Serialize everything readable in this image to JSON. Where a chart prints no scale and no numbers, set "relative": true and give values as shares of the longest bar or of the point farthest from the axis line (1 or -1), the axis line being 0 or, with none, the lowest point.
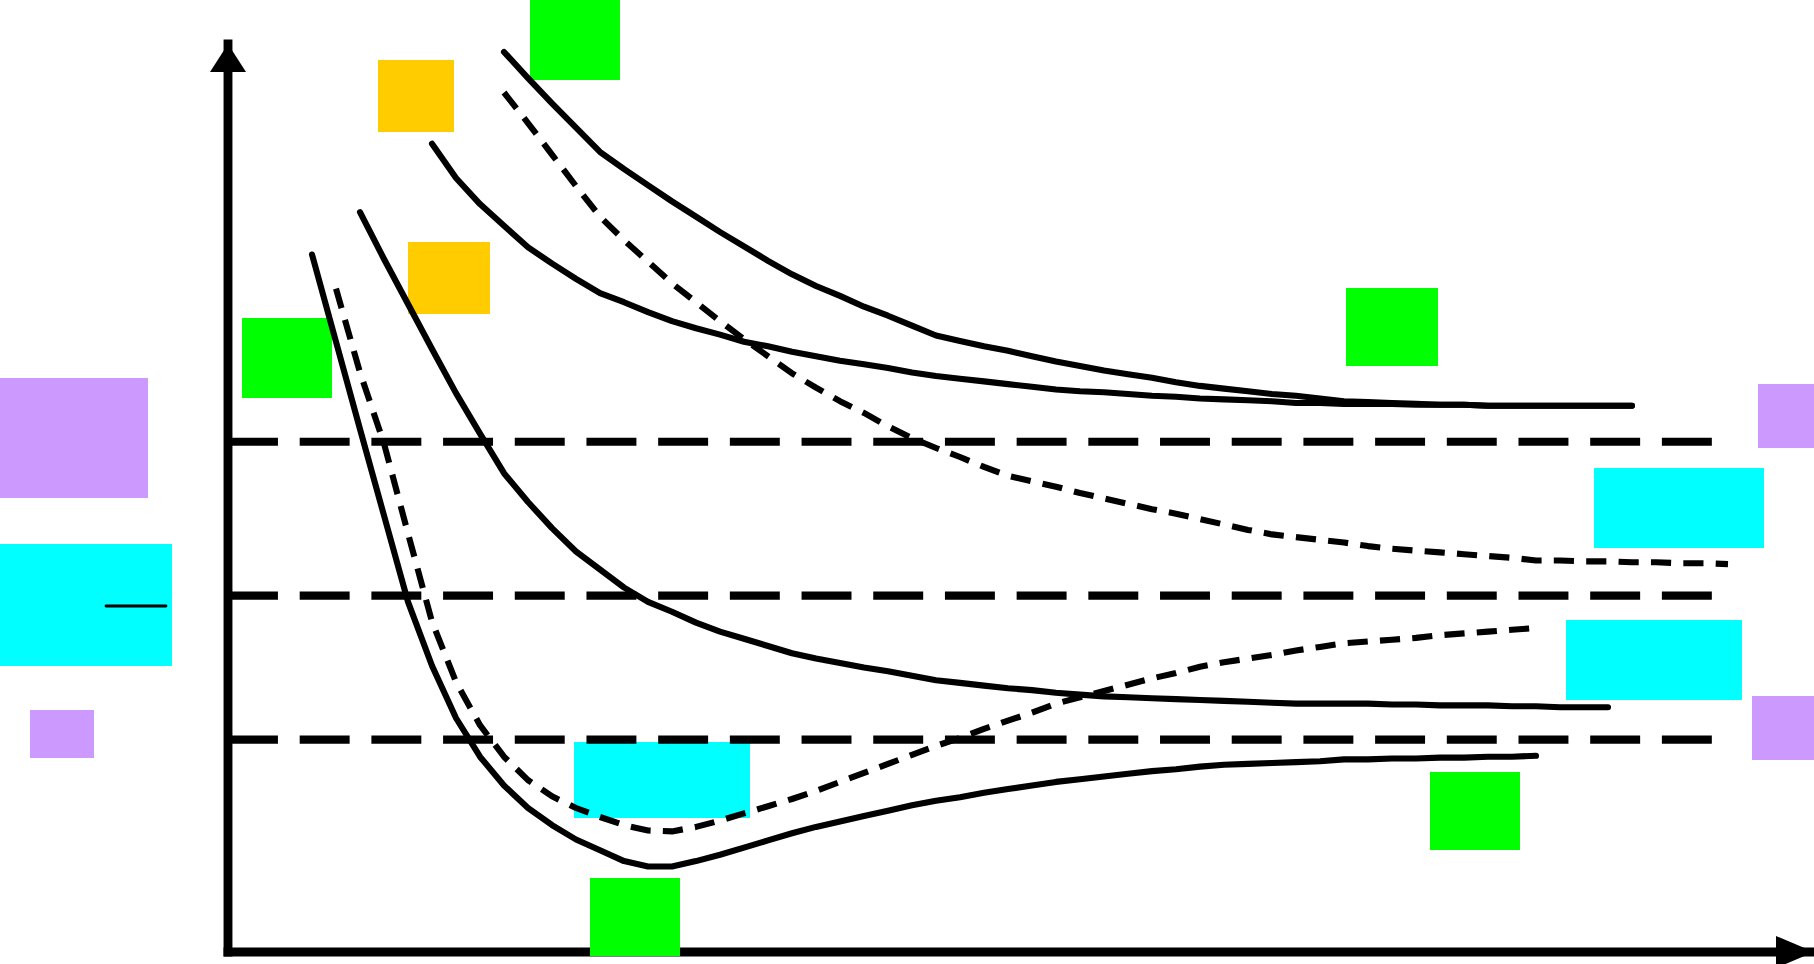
{
  "chart_data": {
    "type": "line",
    "relative": true,
    "categories": [
      null,
      null,
      null,
      null,
      null,
      null,
      null,
      null,
      null,
      null,
      null,
      null,
      null,
      null,
      null,
      null,
      null,
      null,
      null,
      null,
      null,
      null,
      null,
      null,
      null,
      null,
      null,
      null,
      null,
      null,
      null,
      null,
      null,
      null,
      null,
      null,
      null,
      null,
      null,
      null,
      null,
      null,
      null,
      null,
      null,
      null,
      null,
      null,
      null,
      null,
      null,
      null,
      null,
      null,
      null,
      null,
      null,
      null,
      null,
      null,
      null,
      null,
      null,
      null,
      null,
      null
    ],
    "series": [
      {
        "color": "#000000",
        "line_style": "solid",
        "values": [
          null,
          null,
          null,
          null,
          null,
          null,
          null,
          null,
          null,
          null,
          null,
          1.0,
          0.971,
          0.943,
          0.916,
          0.889,
          0.87,
          0.852,
          0.834,
          0.817,
          0.8,
          0.784,
          0.768,
          0.753,
          0.74,
          0.729,
          0.717,
          0.707,
          0.696,
          0.685,
          0.679,
          0.673,
          0.668,
          0.662,
          0.656,
          0.651,
          0.646,
          0.642,
          0.638,
          0.633,
          0.629,
          0.626,
          0.623,
          0.62,
          0.618,
          0.615,
          0.612,
          0.611,
          0.61,
          0.609,
          0.608,
          0.608,
          0.607,
          0.607,
          0.607,
          0.607,
          0.607,
          0.607,
          0.607,
          null,
          null,
          null,
          null,
          null,
          null,
          null
        ]
      },
      {
        "color": "#000000",
        "line_style": "solid",
        "values": [
          null,
          null,
          null,
          null,
          null,
          null,
          null,
          null,
          0.898,
          0.86,
          0.831,
          0.807,
          0.783,
          0.765,
          0.748,
          0.732,
          0.722,
          0.711,
          0.701,
          0.693,
          0.686,
          0.678,
          0.673,
          0.667,
          0.662,
          0.657,
          0.653,
          0.649,
          0.644,
          0.64,
          0.637,
          0.634,
          0.631,
          0.628,
          0.625,
          0.623,
          0.622,
          0.62,
          0.618,
          0.617,
          0.615,
          0.614,
          0.613,
          0.612,
          0.61,
          0.61,
          0.609,
          0.609,
          0.609,
          0.608,
          0.608,
          0.608,
          0.607,
          0.607,
          0.607,
          0.607,
          0.607,
          0.607,
          0.607,
          null,
          null,
          null,
          null,
          null,
          null,
          null
        ]
      },
      {
        "color": "#000000",
        "line_style": "dashed",
        "values": [
          null,
          null,
          null,
          null,
          null,
          null,
          null,
          null,
          null,
          null,
          null,
          0.955,
          0.921,
          0.886,
          0.851,
          0.817,
          0.791,
          0.767,
          0.743,
          0.722,
          0.701,
          0.681,
          0.662,
          0.643,
          0.627,
          0.612,
          0.599,
          0.584,
          0.571,
          0.56,
          0.55,
          0.539,
          0.529,
          0.523,
          0.517,
          0.51,
          0.504,
          0.498,
          0.492,
          0.487,
          0.481,
          0.475,
          0.469,
          0.464,
          0.461,
          0.458,
          0.455,
          0.451,
          0.448,
          0.446,
          0.444,
          0.442,
          0.44,
          0.438,
          0.435,
          0.435,
          0.434,
          0.434,
          0.433,
          0.433,
          0.432,
          0.432,
          0.431,
          null,
          null,
          null
        ]
      },
      {
        "color": "#000000",
        "line_style": "solid",
        "values": [
          null,
          null,
          null,
          null,
          null,
          0.822,
          0.77,
          0.72,
          0.67,
          0.621,
          0.576,
          0.532,
          0.5,
          0.471,
          0.445,
          0.425,
          0.405,
          0.389,
          0.378,
          0.366,
          0.356,
          0.348,
          0.34,
          0.332,
          0.326,
          0.321,
          0.316,
          0.312,
          0.307,
          0.302,
          0.299,
          0.296,
          0.293,
          0.291,
          0.288,
          0.286,
          0.284,
          0.283,
          0.282,
          0.281,
          0.28,
          0.279,
          0.278,
          0.277,
          0.276,
          0.276,
          0.276,
          0.276,
          0.275,
          0.275,
          0.274,
          0.274,
          0.274,
          0.273,
          0.273,
          0.272,
          0.272,
          0.272,
          null,
          null,
          null,
          null,
          null,
          null,
          null,
          null
        ]
      },
      {
        "color": "#000000",
        "line_style": "solid",
        "values": [
          null,
          null,
          null,
          0.775,
          0.678,
          0.581,
          0.485,
          0.389,
          0.318,
          0.26,
          0.217,
          0.185,
          0.16,
          0.141,
          0.125,
          0.113,
          0.101,
          0.095,
          0.095,
          0.101,
          0.108,
          0.116,
          0.124,
          0.132,
          0.139,
          0.145,
          0.151,
          0.157,
          0.163,
          0.168,
          0.172,
          0.177,
          0.181,
          0.185,
          0.189,
          0.192,
          0.195,
          0.198,
          0.201,
          0.203,
          0.206,
          0.208,
          0.209,
          0.21,
          0.211,
          0.212,
          0.214,
          0.214,
          0.215,
          0.215,
          0.216,
          0.216,
          0.217,
          0.217,
          0.218,
          null,
          null,
          null,
          null,
          null,
          null,
          null,
          null,
          null,
          null,
          null
        ]
      },
      {
        "color": "#000000",
        "line_style": "dashed",
        "values": [
          null,
          null,
          null,
          null,
          0.737,
          0.644,
          0.565,
          0.465,
          0.367,
          0.3,
          0.252,
          0.217,
          0.191,
          0.173,
          0.16,
          0.15,
          0.141,
          0.135,
          0.134,
          0.139,
          0.146,
          0.154,
          0.162,
          0.17,
          0.179,
          0.189,
          0.199,
          0.209,
          0.219,
          0.229,
          0.238,
          0.248,
          0.257,
          0.266,
          0.276,
          0.283,
          0.29,
          0.297,
          0.304,
          0.31,
          0.317,
          0.322,
          0.326,
          0.33,
          0.335,
          0.339,
          0.343,
          0.345,
          0.347,
          0.349,
          0.352,
          0.354,
          0.356,
          0.358,
          0.36,
          null,
          null,
          null,
          null,
          null,
          null,
          null,
          null,
          null,
          null,
          null
        ]
      }
    ],
    "ref_lines": [
      {
        "axis": "y",
        "value": 0.567,
        "color": "#000000",
        "line_style": "dashed"
      },
      {
        "axis": "y",
        "value": 0.396,
        "color": "#000000",
        "line_style": "dashed"
      },
      {
        "axis": "y",
        "value": 0.236,
        "color": "#000000",
        "line_style": "dashed"
      }
    ]
  }
}
